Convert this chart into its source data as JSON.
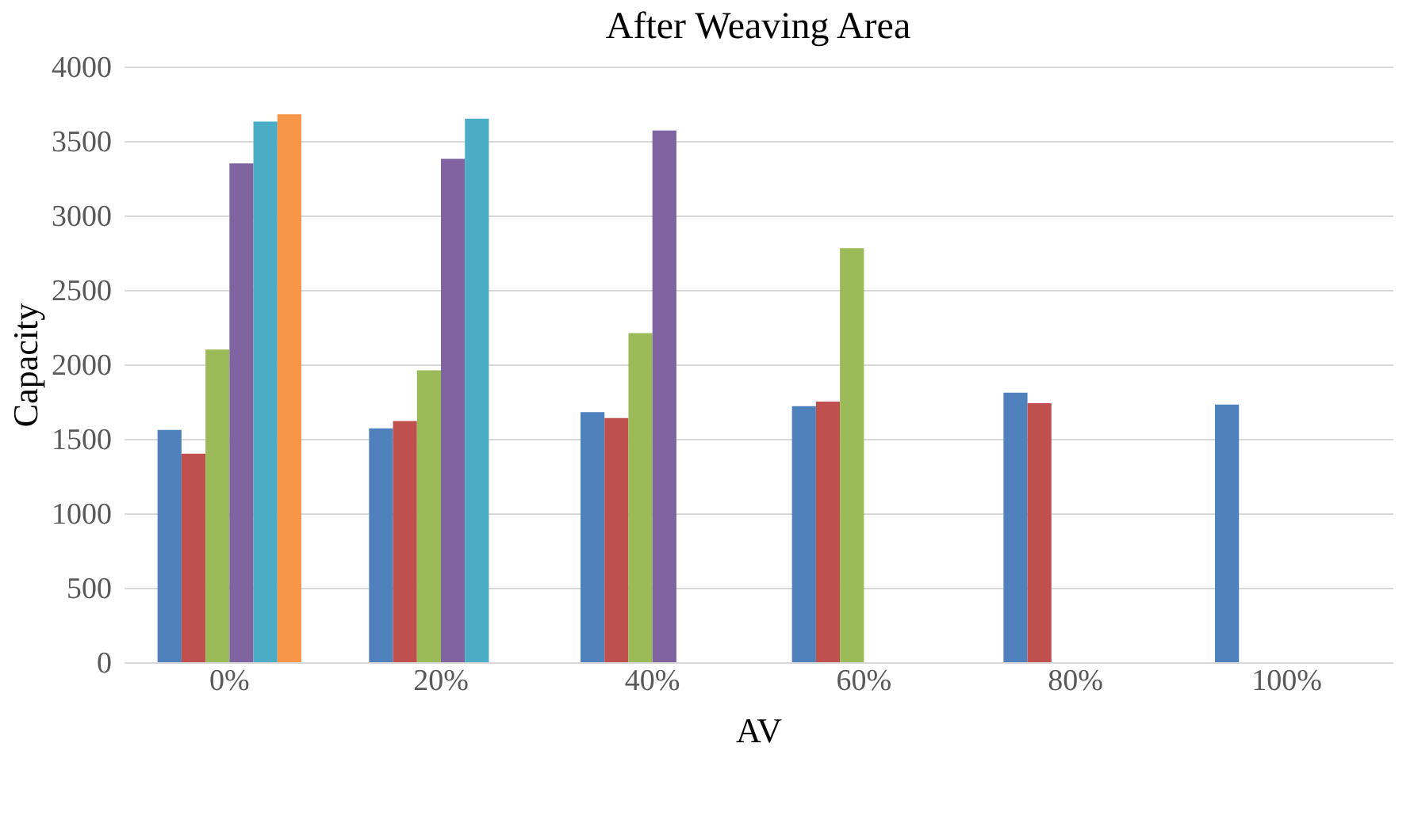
{
  "chart_data": {
    "type": "bar",
    "title": "After Weaving Area",
    "xlabel": "AV",
    "ylabel": "Capacity",
    "categories": [
      "0%",
      "20%",
      "40%",
      "60%",
      "80%",
      "100%"
    ],
    "series": [
      {
        "color": "#4f81bd",
        "values": [
          1560,
          1570,
          1680,
          1720,
          1810,
          1730
        ]
      },
      {
        "color": "#c0504d",
        "values": [
          1400,
          1620,
          1640,
          1750,
          1740,
          null
        ]
      },
      {
        "color": "#9bbb59",
        "values": [
          2100,
          1960,
          2210,
          2780,
          null,
          null
        ]
      },
      {
        "color": "#8064a2",
        "values": [
          3350,
          3380,
          3570,
          null,
          null,
          null
        ]
      },
      {
        "color": "#4bacc6",
        "values": [
          3630,
          3650,
          null,
          null,
          null,
          null
        ]
      },
      {
        "color": "#f79646",
        "values": [
          3680,
          null,
          null,
          null,
          null,
          null
        ]
      }
    ],
    "ylim": [
      0,
      4000
    ],
    "yticks": [
      0,
      500,
      1000,
      1500,
      2000,
      2500,
      3000,
      3500,
      4000
    ],
    "grid": "y",
    "legend": false
  }
}
